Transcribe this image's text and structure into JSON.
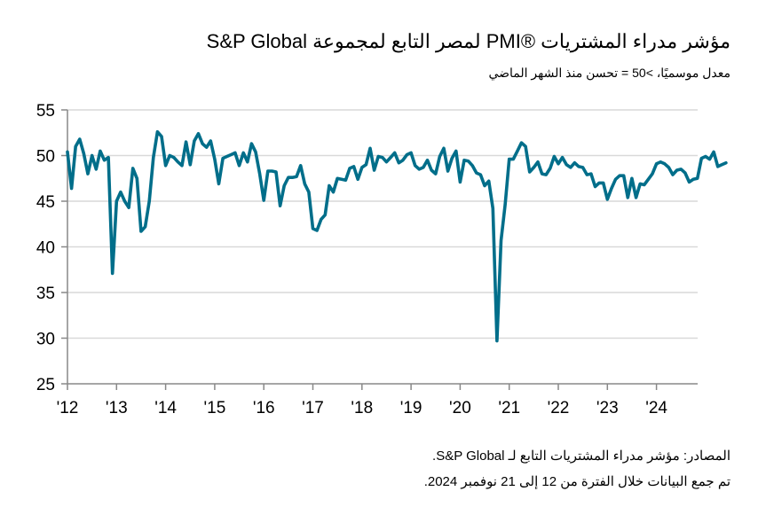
{
  "header": {
    "title": "مؤشر مدراء المشتريات ®PMI لمصر التابع لمجموعة S&P Global",
    "subtitle": "معدل موسميًا، >50 = تحسن منذ الشهر الماضي"
  },
  "footer": {
    "source": "المصادر: مؤشر مدراء المشتريات التابع لـ S&P Global.",
    "note": "تم جمع البيانات خلال الفترة من 12 إلى 21 نوفمبر 2024."
  },
  "chart_data": {
    "type": "line",
    "title": "مؤشر مدراء المشتريات ®PMI لمصر التابع لمجموعة S&P Global",
    "subtitle": "معدل موسميًا، >50 = تحسن منذ الشهر الماضي",
    "xlabel": "",
    "ylabel": "",
    "ylim": [
      25,
      55
    ],
    "yticks": [
      25,
      30,
      35,
      40,
      45,
      50,
      55
    ],
    "xticks": [
      "'12",
      "'13",
      "'14",
      "'15",
      "'16",
      "'17",
      "'18",
      "'19",
      "'20",
      "'21",
      "'22",
      "'23",
      "'24"
    ],
    "grid": true,
    "legend": "none",
    "line_color": "#006e8a",
    "start": "2012-01",
    "end": "2024-11",
    "series": [
      {
        "name": "Egypt PMI",
        "values": [
          50.4,
          46.4,
          51.0,
          51.8,
          50.2,
          48.0,
          50.0,
          48.5,
          50.5,
          49.5,
          49.8,
          37.1,
          45.0,
          46.0,
          45.0,
          44.3,
          48.6,
          47.5,
          41.7,
          42.2,
          45.0,
          49.8,
          52.6,
          52.1,
          48.9,
          50.0,
          49.8,
          49.3,
          48.9,
          51.5,
          49.0,
          51.6,
          52.4,
          51.3,
          50.9,
          51.6,
          49.6,
          46.9,
          49.7,
          49.9,
          50.1,
          50.3,
          48.9,
          50.3,
          49.3,
          51.3,
          50.4,
          48.0,
          45.1,
          48.3,
          48.3,
          48.2,
          44.5,
          46.7,
          47.6,
          47.6,
          47.7,
          48.9,
          46.9,
          46.0,
          42.0,
          41.8,
          43.0,
          43.5,
          46.7,
          46.0,
          47.5,
          47.4,
          47.3,
          48.6,
          48.8,
          47.4,
          48.7,
          49.0,
          50.8,
          48.4,
          49.9,
          49.8,
          49.3,
          49.8,
          50.3,
          49.2,
          49.5,
          50.1,
          50.3,
          48.9,
          48.5,
          48.7,
          49.5,
          48.4,
          48.0,
          49.9,
          50.8,
          48.3,
          49.7,
          50.5,
          47.1,
          49.5,
          49.4,
          48.9,
          48.1,
          47.9,
          46.7,
          47.2,
          44.2,
          29.7,
          40.7,
          44.6,
          49.6,
          49.6,
          50.5,
          51.4,
          51.0,
          48.2,
          48.7,
          49.3,
          48.0,
          47.9,
          48.6,
          49.9,
          49.1,
          49.8,
          49.0,
          48.7,
          49.2,
          48.8,
          48.7,
          47.9,
          48.0,
          46.6,
          47.0,
          47.0,
          45.2,
          46.4,
          47.4,
          47.8,
          47.8,
          45.4,
          47.5,
          45.4,
          46.9,
          46.8,
          47.4,
          48.0,
          49.1,
          49.3,
          49.1,
          48.7,
          47.9,
          48.4,
          48.5,
          48.1,
          47.1,
          47.4,
          47.5,
          49.7,
          49.9,
          49.6,
          50.4,
          48.8,
          49.0,
          49.2
        ]
      }
    ]
  }
}
